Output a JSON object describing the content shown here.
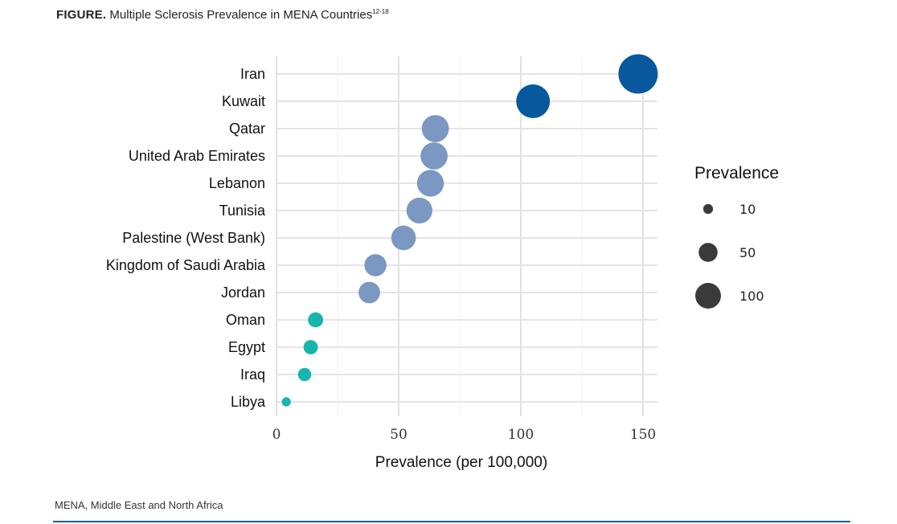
{
  "figure": {
    "label": "FIGURE.",
    "title": "Multiple Sclerosis Prevalence in MENA Countries",
    "refs": "12-18"
  },
  "footnote": "MENA, Middle East and North Africa",
  "chart_data": {
    "type": "scatter",
    "title": "Multiple Sclerosis Prevalence in MENA Countries",
    "xlabel": "Prevalence (per 100,000)",
    "ylabel": "",
    "xlim": [
      0,
      155
    ],
    "xticks": [
      0,
      50,
      100,
      150
    ],
    "grid": true,
    "legend": {
      "title": "Prevalence",
      "placement": "right",
      "entries": [
        {
          "label": "10",
          "value": 10
        },
        {
          "label": "50",
          "value": 50
        },
        {
          "label": "100",
          "value": 100
        }
      ]
    },
    "points": [
      {
        "country": "Iran",
        "value": 148,
        "color": "#08589e"
      },
      {
        "country": "Kuwait",
        "value": 105,
        "color": "#08589e"
      },
      {
        "country": "Qatar",
        "value": 65,
        "color": "#7b98c2"
      },
      {
        "country": "United Arab Emirates",
        "value": 64.5,
        "color": "#7b98c2"
      },
      {
        "country": "Lebanon",
        "value": 63,
        "color": "#7b98c2"
      },
      {
        "country": "Tunisia",
        "value": 58.5,
        "color": "#7b98c2"
      },
      {
        "country": "Palestine (West Bank)",
        "value": 52,
        "color": "#7b98c2"
      },
      {
        "country": "Kingdom of Saudi Arabia",
        "value": 40.5,
        "color": "#7b98c2"
      },
      {
        "country": "Jordan",
        "value": 38,
        "color": "#7b98c2"
      },
      {
        "country": "Oman",
        "value": 16,
        "color": "#17b5b0"
      },
      {
        "country": "Egypt",
        "value": 14,
        "color": "#17b5b0"
      },
      {
        "country": "Iraq",
        "value": 11.5,
        "color": "#17b5b0"
      },
      {
        "country": "Libya",
        "value": 4,
        "color": "#17b5b0"
      }
    ]
  }
}
